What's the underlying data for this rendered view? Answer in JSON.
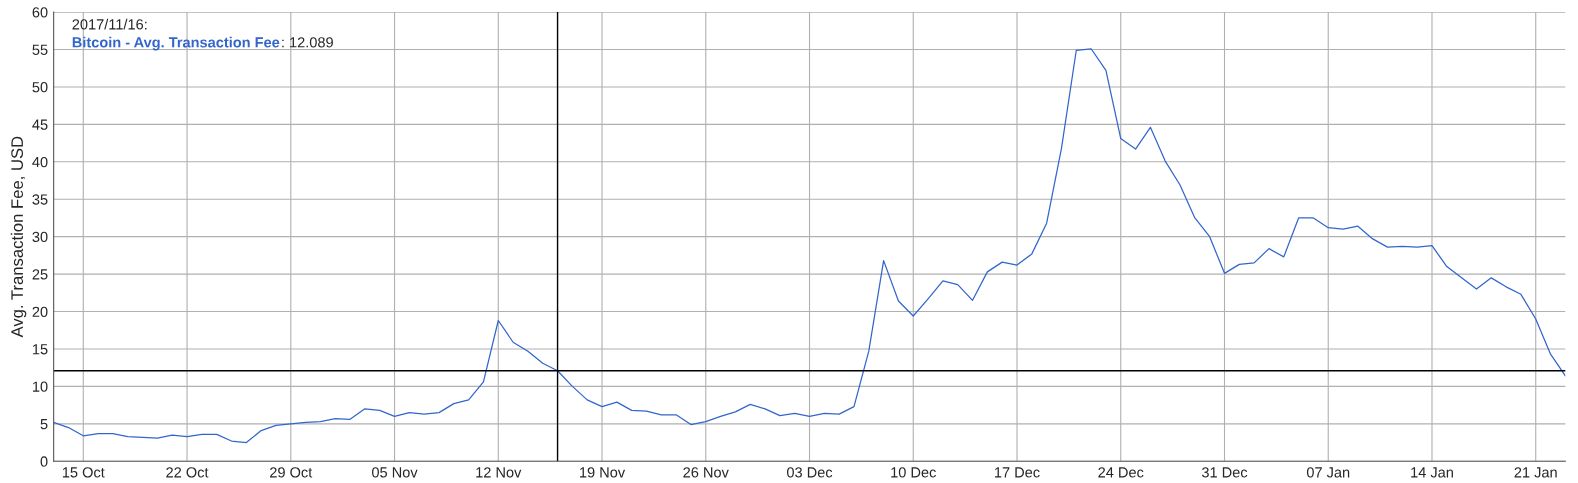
{
  "chart_data": {
    "type": "line",
    "ylabel": "Avg. Transaction Fee, USD",
    "x": [
      "2017-10-13",
      "2017-10-14",
      "2017-10-15",
      "2017-10-16",
      "2017-10-17",
      "2017-10-18",
      "2017-10-19",
      "2017-10-20",
      "2017-10-21",
      "2017-10-22",
      "2017-10-23",
      "2017-10-24",
      "2017-10-25",
      "2017-10-26",
      "2017-10-27",
      "2017-10-28",
      "2017-10-29",
      "2017-10-30",
      "2017-10-31",
      "2017-11-01",
      "2017-11-02",
      "2017-11-03",
      "2017-11-04",
      "2017-11-05",
      "2017-11-06",
      "2017-11-07",
      "2017-11-08",
      "2017-11-09",
      "2017-11-10",
      "2017-11-11",
      "2017-11-12",
      "2017-11-13",
      "2017-11-14",
      "2017-11-15",
      "2017-11-16",
      "2017-11-17",
      "2017-11-18",
      "2017-11-19",
      "2017-11-20",
      "2017-11-21",
      "2017-11-22",
      "2017-11-23",
      "2017-11-24",
      "2017-11-25",
      "2017-11-26",
      "2017-11-27",
      "2017-11-28",
      "2017-11-29",
      "2017-11-30",
      "2017-12-01",
      "2017-12-02",
      "2017-12-03",
      "2017-12-04",
      "2017-12-05",
      "2017-12-06",
      "2017-12-07",
      "2017-12-08",
      "2017-12-09",
      "2017-12-10",
      "2017-12-11",
      "2017-12-12",
      "2017-12-13",
      "2017-12-14",
      "2017-12-15",
      "2017-12-16",
      "2017-12-17",
      "2017-12-18",
      "2017-12-19",
      "2017-12-20",
      "2017-12-21",
      "2017-12-22",
      "2017-12-23",
      "2017-12-24",
      "2017-12-25",
      "2017-12-26",
      "2017-12-27",
      "2017-12-28",
      "2017-12-29",
      "2017-12-30",
      "2017-12-31",
      "2018-01-01",
      "2018-01-02",
      "2018-01-03",
      "2018-01-04",
      "2018-01-05",
      "2018-01-06",
      "2018-01-07",
      "2018-01-08",
      "2018-01-09",
      "2018-01-10",
      "2018-01-11",
      "2018-01-12",
      "2018-01-13",
      "2018-01-14",
      "2018-01-15",
      "2018-01-16",
      "2018-01-17",
      "2018-01-18",
      "2018-01-19",
      "2018-01-20",
      "2018-01-21",
      "2018-01-22",
      "2018-01-23"
    ],
    "series": [
      {
        "name": "Bitcoin - Avg. Transaction Fee",
        "color": "#3366cc",
        "values": [
          5.2,
          4.5,
          3.4,
          3.7,
          3.7,
          3.3,
          3.2,
          3.1,
          3.5,
          3.3,
          3.6,
          3.6,
          2.7,
          2.5,
          4.1,
          4.8,
          5.0,
          5.2,
          5.3,
          5.7,
          5.6,
          7.0,
          6.8,
          6.0,
          6.5,
          6.3,
          6.5,
          7.7,
          8.2,
          10.6,
          18.8,
          15.9,
          14.7,
          13.1,
          12.089,
          10.0,
          8.2,
          7.3,
          7.9,
          6.8,
          6.7,
          6.2,
          6.2,
          4.9,
          5.3,
          6.0,
          6.6,
          7.6,
          7.0,
          6.1,
          6.4,
          6.0,
          6.4,
          6.3,
          7.3,
          14.7,
          26.8,
          21.4,
          19.4,
          21.7,
          24.1,
          23.6,
          21.5,
          25.3,
          26.6,
          26.2,
          27.7,
          31.8,
          41.8,
          54.9,
          55.1,
          52.2,
          43.1,
          41.7,
          44.6,
          40.1,
          36.9,
          32.5,
          30.0,
          25.1,
          26.3,
          26.5,
          28.4,
          27.3,
          32.5,
          32.5,
          31.2,
          31.0,
          31.4,
          29.7,
          28.6,
          28.7,
          28.6,
          28.8,
          26.0,
          24.5,
          23.0,
          24.5,
          23.3,
          22.3,
          19.0,
          14.3,
          11.4
        ]
      }
    ],
    "xlim": [
      "2017-10-13",
      "2018-01-23"
    ],
    "xticks": [
      {
        "value": "2017-10-15",
        "label": "15 Oct"
      },
      {
        "value": "2017-10-22",
        "label": "22 Oct"
      },
      {
        "value": "2017-10-29",
        "label": "29 Oct"
      },
      {
        "value": "2017-11-05",
        "label": "05 Nov"
      },
      {
        "value": "2017-11-12",
        "label": "12 Nov"
      },
      {
        "value": "2017-11-19",
        "label": "19 Nov"
      },
      {
        "value": "2017-11-26",
        "label": "26 Nov"
      },
      {
        "value": "2017-12-03",
        "label": "03 Dec"
      },
      {
        "value": "2017-12-10",
        "label": "10 Dec"
      },
      {
        "value": "2017-12-17",
        "label": "17 Dec"
      },
      {
        "value": "2017-12-24",
        "label": "24 Dec"
      },
      {
        "value": "2017-12-31",
        "label": "31 Dec"
      },
      {
        "value": "2018-01-07",
        "label": "07 Jan"
      },
      {
        "value": "2018-01-14",
        "label": "14 Jan"
      },
      {
        "value": "2018-01-21",
        "label": "21 Jan"
      }
    ],
    "ylim": [
      0,
      60
    ],
    "yticks": [
      0,
      5,
      10,
      15,
      20,
      25,
      30,
      35,
      40,
      45,
      50,
      55,
      60
    ],
    "grid": true,
    "line_style": "solid",
    "marker": "none",
    "ref_lines": [
      {
        "axis": "x",
        "value": "2017-11-16",
        "color": "#000000"
      },
      {
        "axis": "y",
        "value": 12.089,
        "color": "#000000"
      }
    ],
    "annotations": [
      "2017/11/16:",
      ": 12.089"
    ]
  }
}
